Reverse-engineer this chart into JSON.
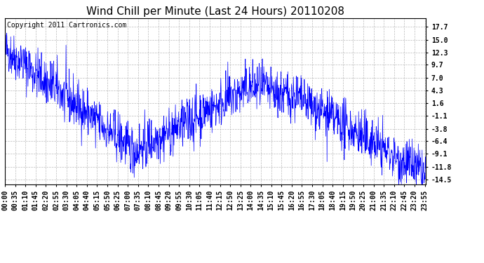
{
  "title": "Wind Chill per Minute (Last 24 Hours) 20110208",
  "copyright_text": "Copyright 2011 Cartronics.com",
  "line_color": "#0000FF",
  "background_color": "#FFFFFF",
  "plot_background": "#FFFFFF",
  "grid_color": "#AAAAAA",
  "yticks": [
    17.7,
    15.0,
    12.3,
    9.7,
    7.0,
    4.3,
    1.6,
    -1.1,
    -3.8,
    -6.4,
    -9.1,
    -11.8,
    -14.5
  ],
  "ylim": [
    -15.5,
    19.5
  ],
  "title_fontsize": 11,
  "tick_fontsize": 7,
  "copyright_fontsize": 7,
  "tick_interval": 35
}
